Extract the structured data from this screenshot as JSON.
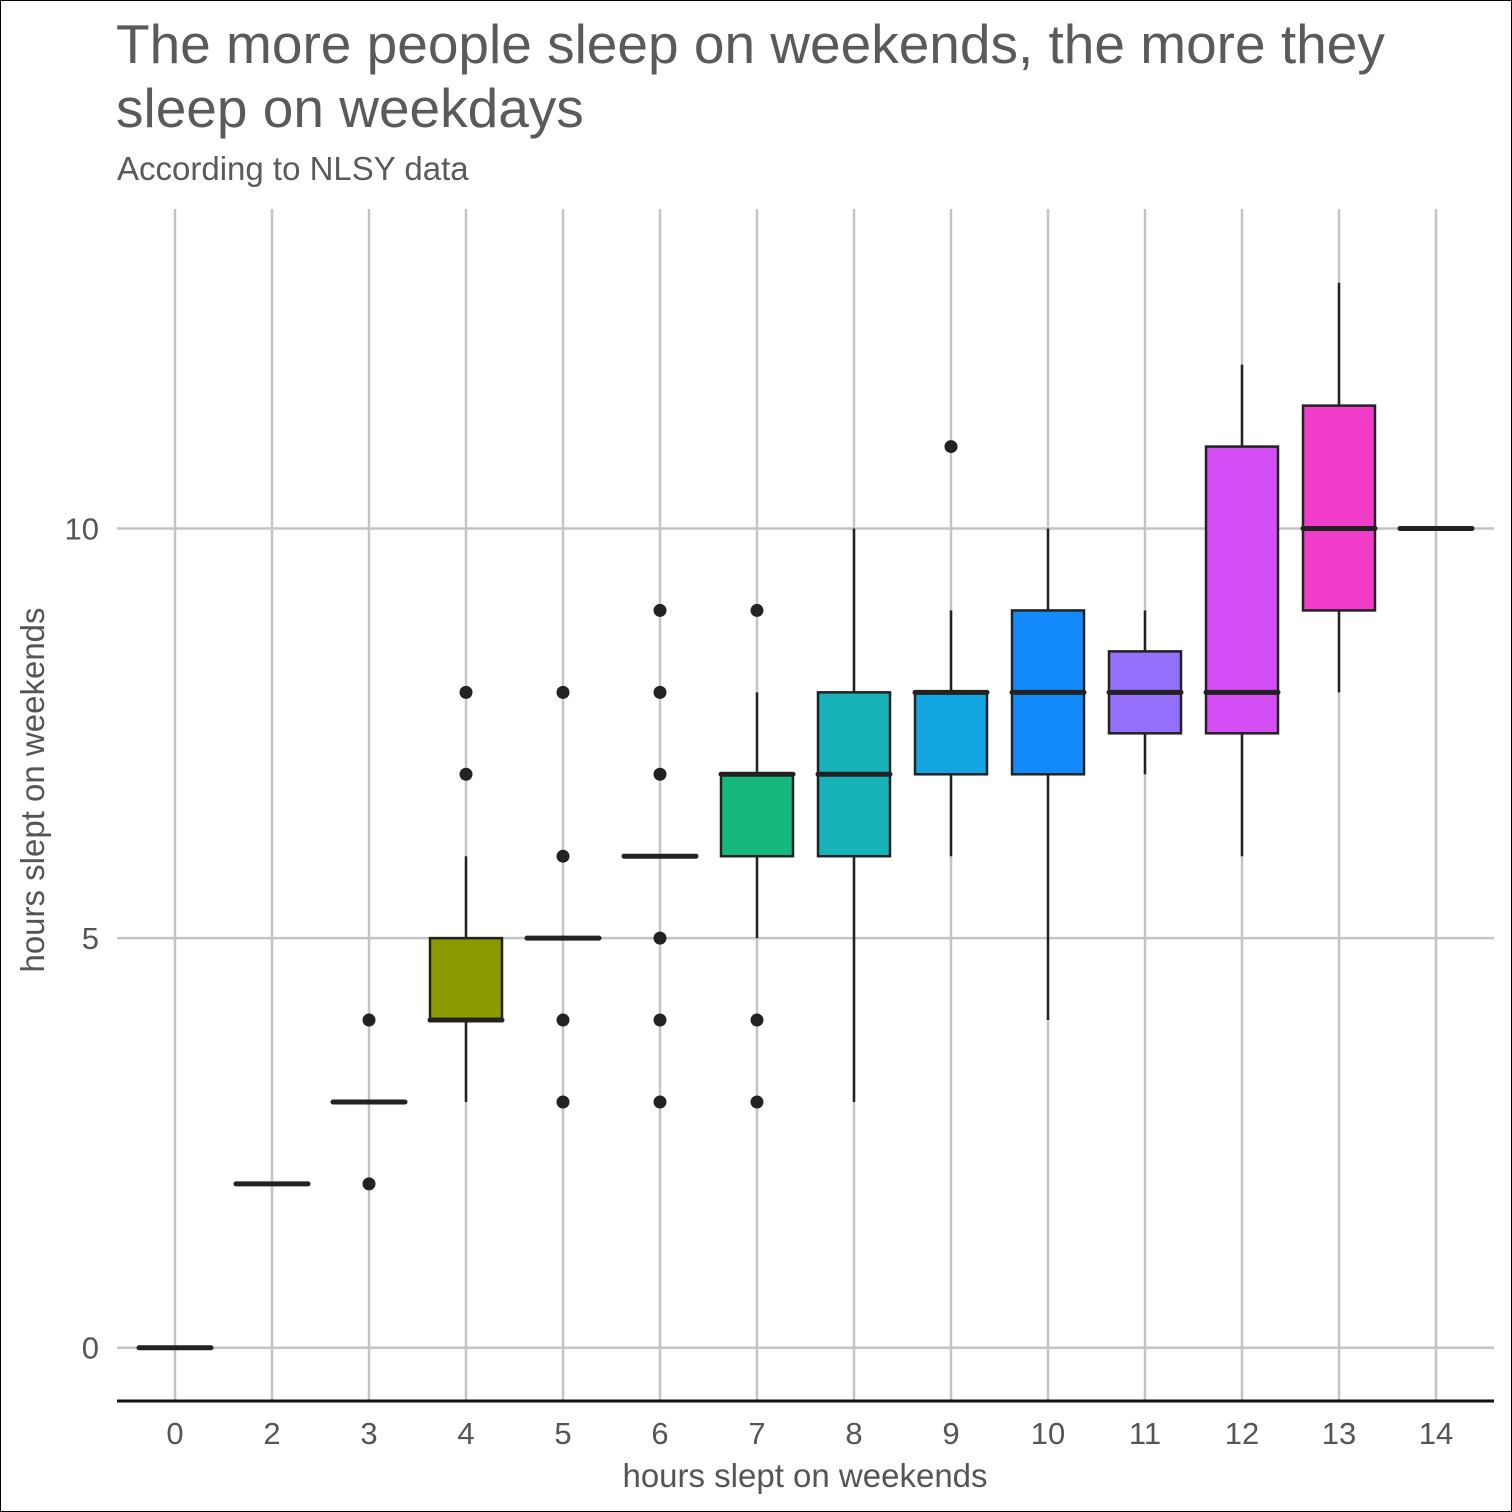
{
  "chart_data": {
    "type": "boxplot",
    "title": "The more people sleep on weekends, the more they\n sleep on weekdays",
    "subtitle": "According to NLSY data",
    "xlabel": "hours slept on weekends",
    "ylabel": "hours slept on weekends",
    "categories": [
      "0",
      "2",
      "3",
      "4",
      "5",
      "6",
      "7",
      "8",
      "9",
      "10",
      "11",
      "12",
      "13",
      "14"
    ],
    "y_ticks": [
      0,
      5,
      10
    ],
    "ylim": [
      -0.65,
      13.9
    ],
    "grid": true,
    "legend": "none",
    "boxes": [
      {
        "category": "0",
        "min": 0,
        "q1": 0,
        "median": 0,
        "q3": 0,
        "max": 0,
        "outliers": [],
        "color": "#F8766D"
      },
      {
        "category": "2",
        "min": 2,
        "q1": 2,
        "median": 2,
        "q3": 2,
        "max": 2,
        "outliers": [],
        "color": "#E18A00"
      },
      {
        "category": "3",
        "min": 3,
        "q1": 3,
        "median": 3,
        "q3": 3,
        "max": 3,
        "outliers": [
          2,
          4
        ],
        "color": "#BE9C00"
      },
      {
        "category": "4",
        "min": 3,
        "q1": 4,
        "median": 4,
        "q3": 5,
        "max": 6,
        "outliers": [
          7,
          8
        ],
        "color": "#8B9A00"
      },
      {
        "category": "5",
        "min": 5,
        "q1": 5,
        "median": 5,
        "q3": 5,
        "max": 5,
        "outliers": [
          3,
          4,
          6,
          8
        ],
        "color": "#24B700"
      },
      {
        "category": "6",
        "min": 6,
        "q1": 6,
        "median": 6,
        "q3": 6,
        "max": 6,
        "outliers": [
          3,
          4,
          5,
          7,
          8,
          9
        ],
        "color": "#00BE70"
      },
      {
        "category": "7",
        "min": 5,
        "q1": 6,
        "median": 7,
        "q3": 7,
        "max": 8,
        "outliers": [
          3,
          4,
          9
        ],
        "color": "#16B87E"
      },
      {
        "category": "8",
        "min": 3,
        "q1": 6,
        "median": 7,
        "q3": 8,
        "max": 10,
        "outliers": [],
        "color": "#17B3B8"
      },
      {
        "category": "9",
        "min": 6,
        "q1": 7,
        "median": 8,
        "q3": 8,
        "max": 9,
        "outliers": [
          11
        ],
        "color": "#12A7E2"
      },
      {
        "category": "10",
        "min": 4,
        "q1": 7,
        "median": 8,
        "q3": 9,
        "max": 10,
        "outliers": [],
        "color": "#148BFA"
      },
      {
        "category": "11",
        "min": 7,
        "q1": 7.5,
        "median": 8,
        "q3": 8.5,
        "max": 9,
        "outliers": [],
        "color": "#9570FC"
      },
      {
        "category": "12",
        "min": 6,
        "q1": 7.5,
        "median": 8,
        "q3": 11,
        "max": 12,
        "outliers": [],
        "color": "#D34EF5"
      },
      {
        "category": "13",
        "min": 8,
        "q1": 9,
        "median": 10,
        "q3": 11.5,
        "max": 13,
        "outliers": [],
        "color": "#F23DCB"
      },
      {
        "category": "14",
        "min": 10,
        "q1": 10,
        "median": 10,
        "q3": 10,
        "max": 10,
        "outliers": [],
        "color": "#FF62BC"
      }
    ]
  }
}
